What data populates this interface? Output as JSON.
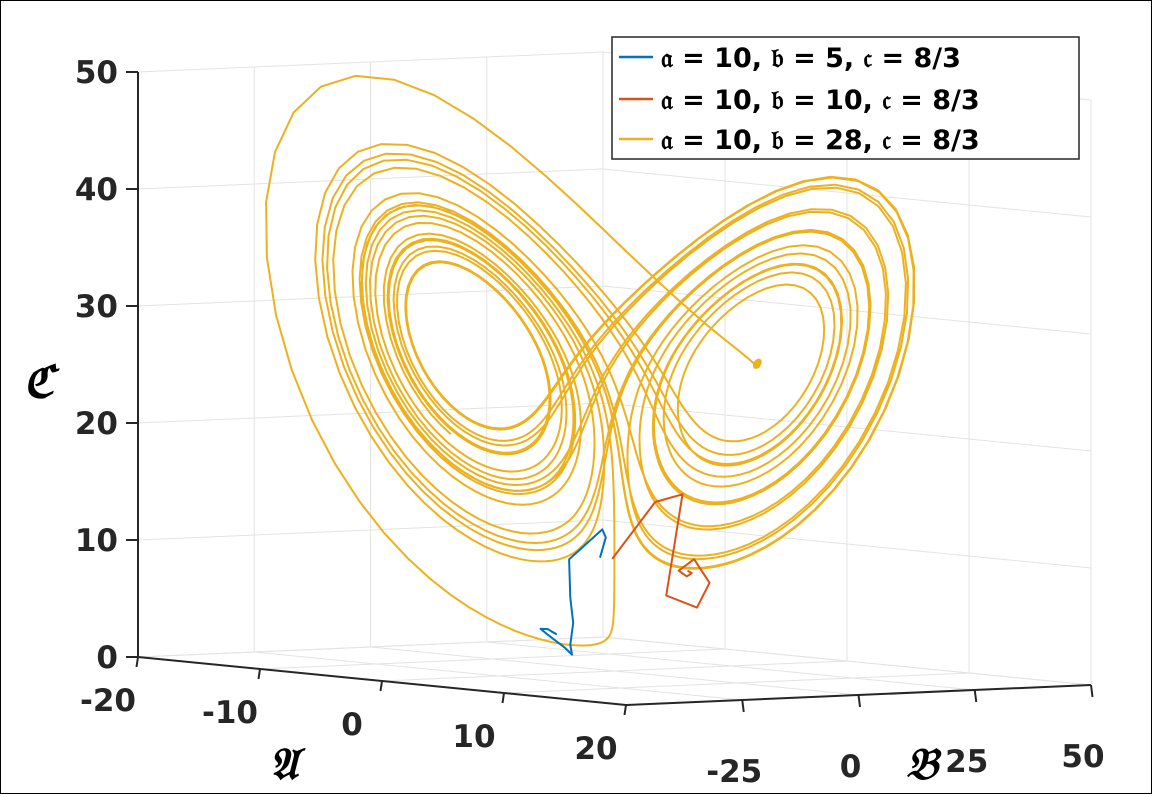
{
  "chart_data": {
    "type": "line",
    "projection": "3d",
    "axes": {
      "x": {
        "label": "𝔄",
        "ticks": [
          "-20",
          "-10",
          "0",
          "10",
          "20"
        ],
        "lim": [
          -20,
          20
        ]
      },
      "y": {
        "label": "𝔅",
        "ticks": [
          "-25",
          "0",
          "25",
          "50"
        ],
        "lim": [
          -50,
          50
        ]
      },
      "z": {
        "label": "ℭ",
        "ticks": [
          "0",
          "10",
          "20",
          "30",
          "40",
          "50"
        ],
        "lim": [
          0,
          50
        ]
      }
    },
    "grid": true,
    "legend_position": "top-right",
    "series": [
      {
        "name": "𝔞 = 10, 𝔟 = 5, 𝔠 = 8/3",
        "color": "#0072bd",
        "description": "Lorenz system converging to fixed point",
        "x": [
          -5,
          -3,
          -1,
          2,
          4,
          5,
          4,
          3,
          2,
          1,
          0.8,
          1.2,
          1.5,
          1.3
        ],
        "y": [
          10,
          6,
          0,
          -15,
          -20,
          -22,
          -20,
          -17,
          -16,
          -17,
          -18,
          -17.5,
          -16.5,
          -17
        ],
        "z": [
          9,
          11,
          12,
          10,
          7,
          5,
          3,
          2,
          2.5,
          3.5,
          4,
          4,
          3.6,
          3.8
        ]
      },
      {
        "name": "𝔞 = 10, 𝔟 = 10, 𝔠 = 8/3",
        "color": "#d95319",
        "description": "Lorenz system spiraling into fixed point",
        "x": [
          -4,
          -2,
          1,
          3,
          5,
          6,
          5.5,
          5,
          4.5,
          4.6,
          4.8,
          4.7
        ],
        "y": [
          10,
          14,
          12,
          5,
          -2,
          2,
          6,
          4,
          2,
          3.5,
          4,
          3.4
        ],
        "z": [
          9,
          14,
          15,
          11,
          7,
          6,
          8,
          10,
          9,
          8.5,
          8.8,
          9
        ]
      },
      {
        "name": "𝔞 = 10, 𝔟 = 28, 𝔠 = 8/3",
        "color": "#edb120",
        "description": "Lorenz strange attractor (butterfly)",
        "x": [],
        "y": [],
        "z": []
      }
    ]
  }
}
